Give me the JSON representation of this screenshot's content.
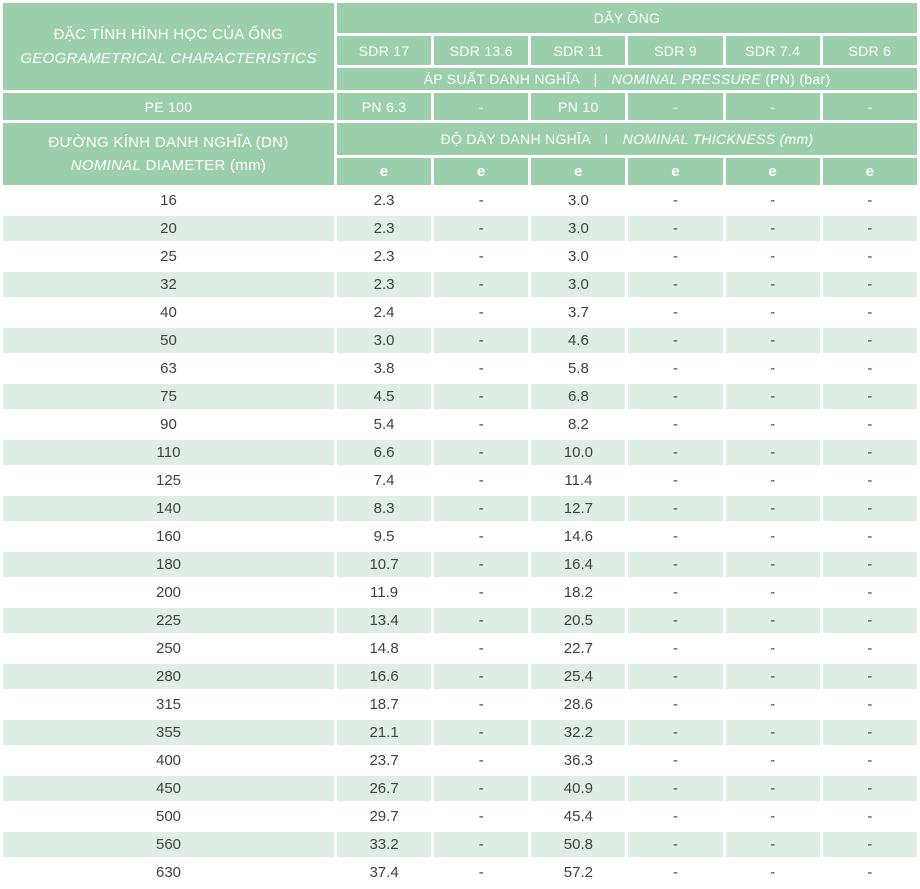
{
  "colors": {
    "header_green": "#9bcfac",
    "stripe_green": "#deeee3",
    "data_text": "#414141",
    "header_text": "#ffffff"
  },
  "header": {
    "left_title_line1": "ĐẶC TÍNH HÌNH HỌC CỦA ỐNG",
    "left_title_line2": "GEOGRAMETRICAL CHARACTERISTICS",
    "series_title": "DÃY ỐNG",
    "sdr_columns": [
      "SDR 17",
      "SDR 13.6",
      "SDR 11",
      "SDR 9",
      "SDR 7.4",
      "SDR 6"
    ],
    "pressure_label_vi": "ÁP SUẤT DANH NGHĨA",
    "pressure_separator": "|",
    "pressure_label_en": "NOMINAL PRESSURE",
    "pressure_label_suffix": "(PN) (bar)",
    "material_label": "PE 100",
    "pn_values": [
      "PN 6.3",
      "-",
      "PN 10",
      "-",
      "-",
      "-"
    ],
    "diameter_label_line1": "ĐƯỜNG KÍNH DANH NGHĨA (DN)",
    "diameter_label_line2_italic": "NOMINAL",
    "diameter_label_line2_rest": "DIAMETER (mm)",
    "thickness_label_vi": "ĐỘ DÀY DANH NGHĨA",
    "thickness_separator": "I",
    "thickness_label_en": "NOMINAL THICKNESS (mm)",
    "e_labels": [
      "e",
      "e",
      "e",
      "e",
      "e",
      "e"
    ]
  },
  "table": {
    "rows": [
      [
        "16",
        "2.3",
        "-",
        "3.0",
        "-",
        "-",
        "-"
      ],
      [
        "20",
        "2.3",
        "-",
        "3.0",
        "-",
        "-",
        "-"
      ],
      [
        "25",
        "2.3",
        "-",
        "3.0",
        "-",
        "-",
        "-"
      ],
      [
        "32",
        "2.3",
        "-",
        "3.0",
        "-",
        "-",
        "-"
      ],
      [
        "40",
        "2.4",
        "-",
        "3.7",
        "-",
        "-",
        "-"
      ],
      [
        "50",
        "3.0",
        "-",
        "4.6",
        "-",
        "-",
        "-"
      ],
      [
        "63",
        "3.8",
        "-",
        "5.8",
        "-",
        "-",
        "-"
      ],
      [
        "75",
        "4.5",
        "-",
        "6.8",
        "-",
        "-",
        "-"
      ],
      [
        "90",
        "5.4",
        "-",
        "8.2",
        "-",
        "-",
        "-"
      ],
      [
        "110",
        "6.6",
        "-",
        "10.0",
        "-",
        "-",
        "-"
      ],
      [
        "125",
        "7.4",
        "-",
        "11.4",
        "-",
        "-",
        "-"
      ],
      [
        "140",
        "8.3",
        "-",
        "12.7",
        "-",
        "-",
        "-"
      ],
      [
        "160",
        "9.5",
        "-",
        "14.6",
        "-",
        "-",
        "-"
      ],
      [
        "180",
        "10.7",
        "-",
        "16.4",
        "-",
        "-",
        "-"
      ],
      [
        "200",
        "11.9",
        "-",
        "18.2",
        "-",
        "-",
        "-"
      ],
      [
        "225",
        "13.4",
        "-",
        "20.5",
        "-",
        "-",
        "-"
      ],
      [
        "250",
        "14.8",
        "-",
        "22.7",
        "-",
        "-",
        "-"
      ],
      [
        "280",
        "16.6",
        "-",
        "25.4",
        "-",
        "-",
        "-"
      ],
      [
        "315",
        "18.7",
        "-",
        "28.6",
        "-",
        "-",
        "-"
      ],
      [
        "355",
        "21.1",
        "-",
        "32.2",
        "-",
        "-",
        "-"
      ],
      [
        "400",
        "23.7",
        "-",
        "36.3",
        "-",
        "-",
        "-"
      ],
      [
        "450",
        "26.7",
        "-",
        "40.9",
        "-",
        "-",
        "-"
      ],
      [
        "500",
        "29.7",
        "-",
        "45.4",
        "-",
        "-",
        "-"
      ],
      [
        "560",
        "33.2",
        "-",
        "50.8",
        "-",
        "-",
        "-"
      ],
      [
        "630",
        "37.4",
        "-",
        "57.2",
        "-",
        "-",
        "-"
      ]
    ]
  }
}
